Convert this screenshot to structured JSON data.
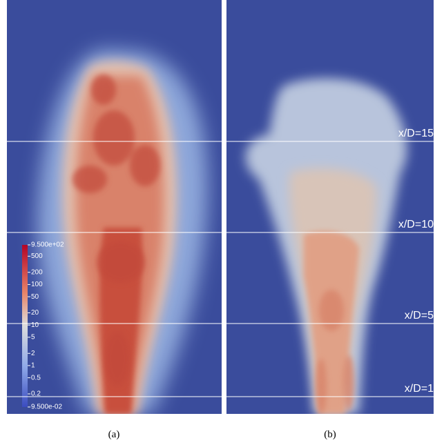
{
  "panels": [
    {
      "caption": "(a)"
    },
    {
      "caption": "(b)"
    }
  ],
  "stations": [
    "x/D=15",
    "x/D=10",
    "x/D=5",
    "x/D=1"
  ],
  "colorbar": {
    "scale": "log",
    "range": [
      0.095,
      950
    ],
    "ticks": [
      {
        "value": 950,
        "label": "9.500e+02"
      },
      500,
      200,
      100,
      50,
      20,
      10,
      5,
      2,
      1,
      0.5,
      0.2,
      {
        "value": 0.095,
        "label": "9.500e-02"
      }
    ]
  }
}
